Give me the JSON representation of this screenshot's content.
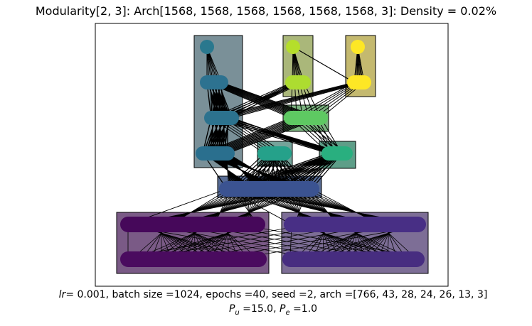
{
  "title": "Modularity[2, 3]: Arch[1568, 1568, 1568, 1568, 1568, 1568, 3]: Density = 0.02%",
  "footer": {
    "lr_symbol": "lr",
    "line1_rest": "=  0.001, batch size =1024, epochs =40, seed =2, arch =[766, 43, 28, 24, 26, 13, 3]",
    "pu_symbol": "P",
    "pu_sub": "u",
    "pu_value": " =15.0, ",
    "pe_symbol": "P",
    "pe_sub": "e",
    "pe_value": " =1.0"
  },
  "colors": {
    "background": "#ffffff",
    "edge": "#000000",
    "l0_top": "#46085a",
    "l0_bottom": "#4a0b5f",
    "l1_top": "#482f85",
    "l1_bottom": "#472d80",
    "l2": "#3b5391",
    "l3_a": "#2a6f8e",
    "l3_b": "#25a18a",
    "l3_c": "#29af7f",
    "l4_a": "#2c728e",
    "l4_b": "#5ec962",
    "l5_a": "#2d7290",
    "l5_b": "#addc30",
    "l5_c": "#fde725",
    "l6_a": "#2a788e",
    "l6_b": "#b5de2b",
    "l6_c": "#fde725",
    "box_purple_left": "#7a5a86",
    "box_purple_right": "#7d6e96",
    "box_blue": "#586c94",
    "box_teal_tall": "#7a9098",
    "box_teal_mid": "#75a39a",
    "box_green_mid": "#7ab27e",
    "box_green_right": "#5e9e88",
    "box_olive": "#aab77a",
    "box_yellow": "#c4b96f"
  }
}
